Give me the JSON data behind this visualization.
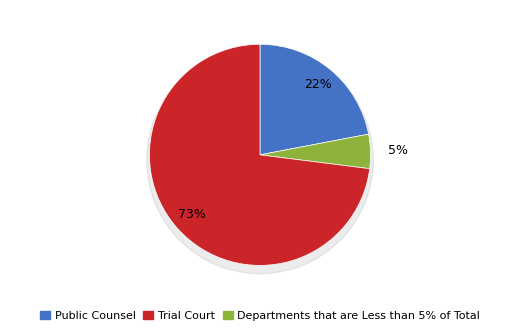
{
  "ordered_values": [
    22,
    5,
    73
  ],
  "ordered_colors": [
    "#4472C4",
    "#8DB33A",
    "#CC2529"
  ],
  "ordered_labels": [
    "Public Counsel",
    "Departments that are Less than 5% of Total",
    "Trial Court"
  ],
  "startangle": 90,
  "counterclock": false,
  "pctdistance": 0.82,
  "background_color": "#FFFFFF",
  "legend_fontsize": 8,
  "autopct_fontsize": 9,
  "legend_labels": [
    "Public Counsel",
    "Trial Court",
    "Departments that are Less than 5% of Total"
  ],
  "legend_colors": [
    "#4472C4",
    "#CC2529",
    "#8DB33A"
  ],
  "label_22_color": "#000000",
  "label_73_color": "#000000",
  "label_5_color": "#000000"
}
